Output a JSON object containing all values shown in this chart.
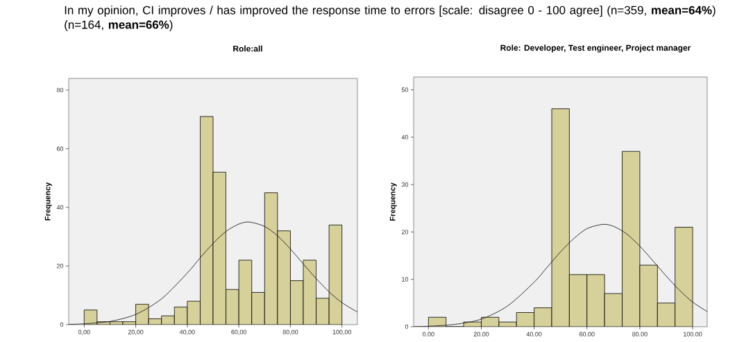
{
  "chart_data": [
    {
      "type": "histogram",
      "title": "Role:all",
      "ylabel": "Frequency",
      "annotations": [
        "In my opinion, CI improves / has improved the response time to errors [scale: disagree 0 - 100 agree] (n=359, **mean=64%**) (n=164, **mean=66%**)"
      ],
      "bins": [
        0,
        5,
        10,
        15,
        20,
        25,
        30,
        35,
        40,
        45,
        50,
        55,
        60,
        65,
        70,
        75,
        80,
        85,
        90,
        95,
        100
      ],
      "values": [
        5,
        1,
        1,
        1,
        7,
        2,
        3,
        6,
        8,
        71,
        52,
        12,
        22,
        11,
        45,
        32,
        15,
        22,
        9,
        34
      ],
      "color": "#d6d09a",
      "series": [
        {
          "type": "line",
          "color": "#222222",
          "x": [
            -6,
            0,
            10,
            20,
            30,
            40,
            45,
            50,
            55,
            60,
            64,
            70,
            75,
            80,
            85,
            90,
            95,
            100,
            106
          ],
          "values": [
            0.1,
            0.3,
            1.1,
            3.5,
            8.8,
            17.6,
            22.8,
            27.7,
            31.8,
            34.3,
            35,
            33.5,
            30.3,
            25.8,
            20.7,
            15.7,
            11.2,
            7.5,
            4.3
          ]
        }
      ],
      "xlim": [
        -6,
        106
      ],
      "ylim": [
        0,
        84
      ],
      "xticks": [
        {
          "value": 0,
          "label": "0,00"
        },
        {
          "value": 20,
          "label": "20,00"
        },
        {
          "value": 40,
          "label": "40,00"
        },
        {
          "value": 60,
          "label": "60,00"
        },
        {
          "value": 80,
          "label": "80,00"
        },
        {
          "value": 100,
          "label": "100,00"
        }
      ],
      "yticks": [
        0,
        20,
        40,
        60,
        80
      ]
    },
    {
      "type": "histogram",
      "title": "Role: Developer, Test engineer, Project manager",
      "ylabel": "Frequency",
      "bins": [
        0,
        6.67,
        13.33,
        20,
        26.67,
        33.33,
        40,
        46.67,
        53.33,
        60,
        66.67,
        73.33,
        80,
        86.67,
        93.33,
        100
      ],
      "values": [
        2,
        0,
        1,
        2,
        1,
        3,
        4,
        46,
        11,
        11,
        7,
        37,
        13,
        5,
        21
      ],
      "color": "#d6d09a",
      "series": [
        {
          "type": "line",
          "color": "#222222",
          "x": [
            -5.6,
            0,
            10,
            20,
            30,
            40,
            45,
            50,
            55,
            60,
            66,
            70,
            75,
            80,
            85,
            90,
            95,
            100,
            105.5
          ],
          "values": [
            0.04,
            0.1,
            0.5,
            1.6,
            4.4,
            9.4,
            12.6,
            15.8,
            18.6,
            20.7,
            21.6,
            21.2,
            19.6,
            17.0,
            13.9,
            10.7,
            7.7,
            5.2,
            3.2
          ]
        }
      ],
      "xlim": [
        -5.6,
        105.5
      ],
      "ylim": [
        0,
        52.7
      ],
      "xticks": [
        {
          "value": 0,
          "label": "0.00"
        },
        {
          "value": 20,
          "label": "20.00"
        },
        {
          "value": 40,
          "label": "40.00"
        },
        {
          "value": 60,
          "label": "60.00"
        },
        {
          "value": 80,
          "label": "80.00"
        },
        {
          "value": 100,
          "label": "100.00"
        }
      ],
      "yticks": [
        0,
        10,
        20,
        30,
        40,
        50
      ]
    }
  ]
}
